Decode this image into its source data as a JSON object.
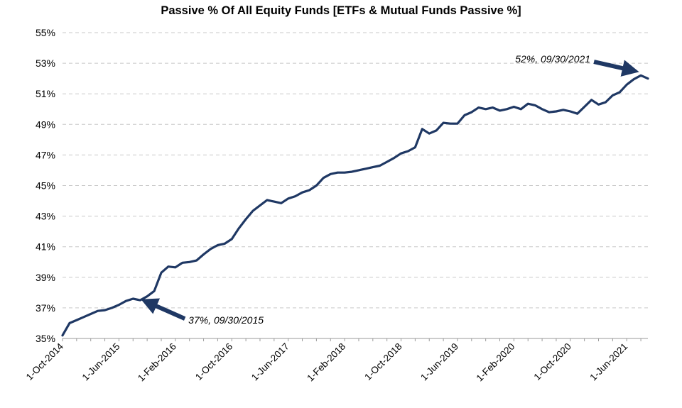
{
  "chart_data": {
    "type": "line",
    "title": "Passive % Of All Equity Funds [ETFs & Mutual Funds Passive %]",
    "xlabel": "",
    "ylabel": "",
    "ylim": [
      35,
      55
    ],
    "y_ticks": [
      35,
      37,
      39,
      41,
      43,
      45,
      47,
      49,
      51,
      53,
      55
    ],
    "y_tick_labels": [
      "35%",
      "37%",
      "39%",
      "41%",
      "43%",
      "45%",
      "47%",
      "49%",
      "51%",
      "53%",
      "55%"
    ],
    "x_tick_labels": [
      "1-Oct-2014",
      "1-Jun-2015",
      "1-Feb-2016",
      "1-Oct-2016",
      "1-Jun-2017",
      "1-Feb-2018",
      "1-Oct-2018",
      "1-Jun-2019",
      "1-Feb-2020",
      "1-Oct-2020",
      "1-Jun-2021"
    ],
    "x_tick_months": [
      0,
      8,
      16,
      24,
      32,
      40,
      48,
      56,
      64,
      72,
      80
    ],
    "x_range_months": [
      0,
      83
    ],
    "grid": true,
    "color": "#1f3864",
    "series": [
      {
        "name": "Passive %",
        "x_months": [
          0,
          1,
          2,
          3,
          4,
          5,
          6,
          7,
          8,
          9,
          10,
          11,
          12,
          13,
          14,
          15,
          16,
          17,
          18,
          19,
          20,
          21,
          22,
          23,
          24,
          25,
          26,
          27,
          28,
          29,
          30,
          31,
          32,
          33,
          34,
          35,
          36,
          37,
          38,
          39,
          40,
          41,
          42,
          43,
          44,
          45,
          46,
          47,
          48,
          49,
          50,
          51,
          52,
          53,
          54,
          55,
          56,
          57,
          58,
          59,
          60,
          61,
          62,
          63,
          64,
          65,
          66,
          67,
          68,
          69,
          70,
          71,
          72,
          73,
          74,
          75,
          76,
          77,
          78,
          79,
          80,
          81,
          82,
          83
        ],
        "values": [
          35.2,
          36.0,
          36.2,
          36.4,
          36.6,
          36.8,
          36.85,
          37.0,
          37.2,
          37.45,
          37.6,
          37.5,
          37.75,
          38.1,
          39.3,
          39.7,
          39.65,
          39.95,
          40.0,
          40.1,
          40.5,
          40.85,
          41.1,
          41.2,
          41.5,
          42.2,
          42.8,
          43.35,
          43.7,
          44.05,
          43.95,
          43.85,
          44.15,
          44.3,
          44.55,
          44.7,
          45.0,
          45.5,
          45.75,
          45.85,
          45.85,
          45.9,
          46.0,
          46.1,
          46.2,
          46.3,
          46.55,
          46.8,
          47.1,
          47.25,
          47.5,
          48.7,
          48.4,
          48.6,
          49.1,
          49.05,
          49.05,
          49.6,
          49.8,
          50.1,
          50.0,
          50.1,
          49.9,
          50.0,
          50.15,
          50.0,
          50.35,
          50.25,
          50.0,
          49.8,
          49.85,
          49.95,
          49.85,
          49.7,
          50.15,
          50.6,
          50.3,
          50.45,
          50.9,
          51.1,
          51.6,
          51.95,
          52.2,
          52.0
        ]
      }
    ],
    "annotations": [
      {
        "text": "37%, 09/30/2015",
        "point_month": 11.5,
        "point_value": 37.5
      },
      {
        "text": "52%, 09/30/2021",
        "point_month": 81.5,
        "point_value": 52.4
      }
    ]
  }
}
